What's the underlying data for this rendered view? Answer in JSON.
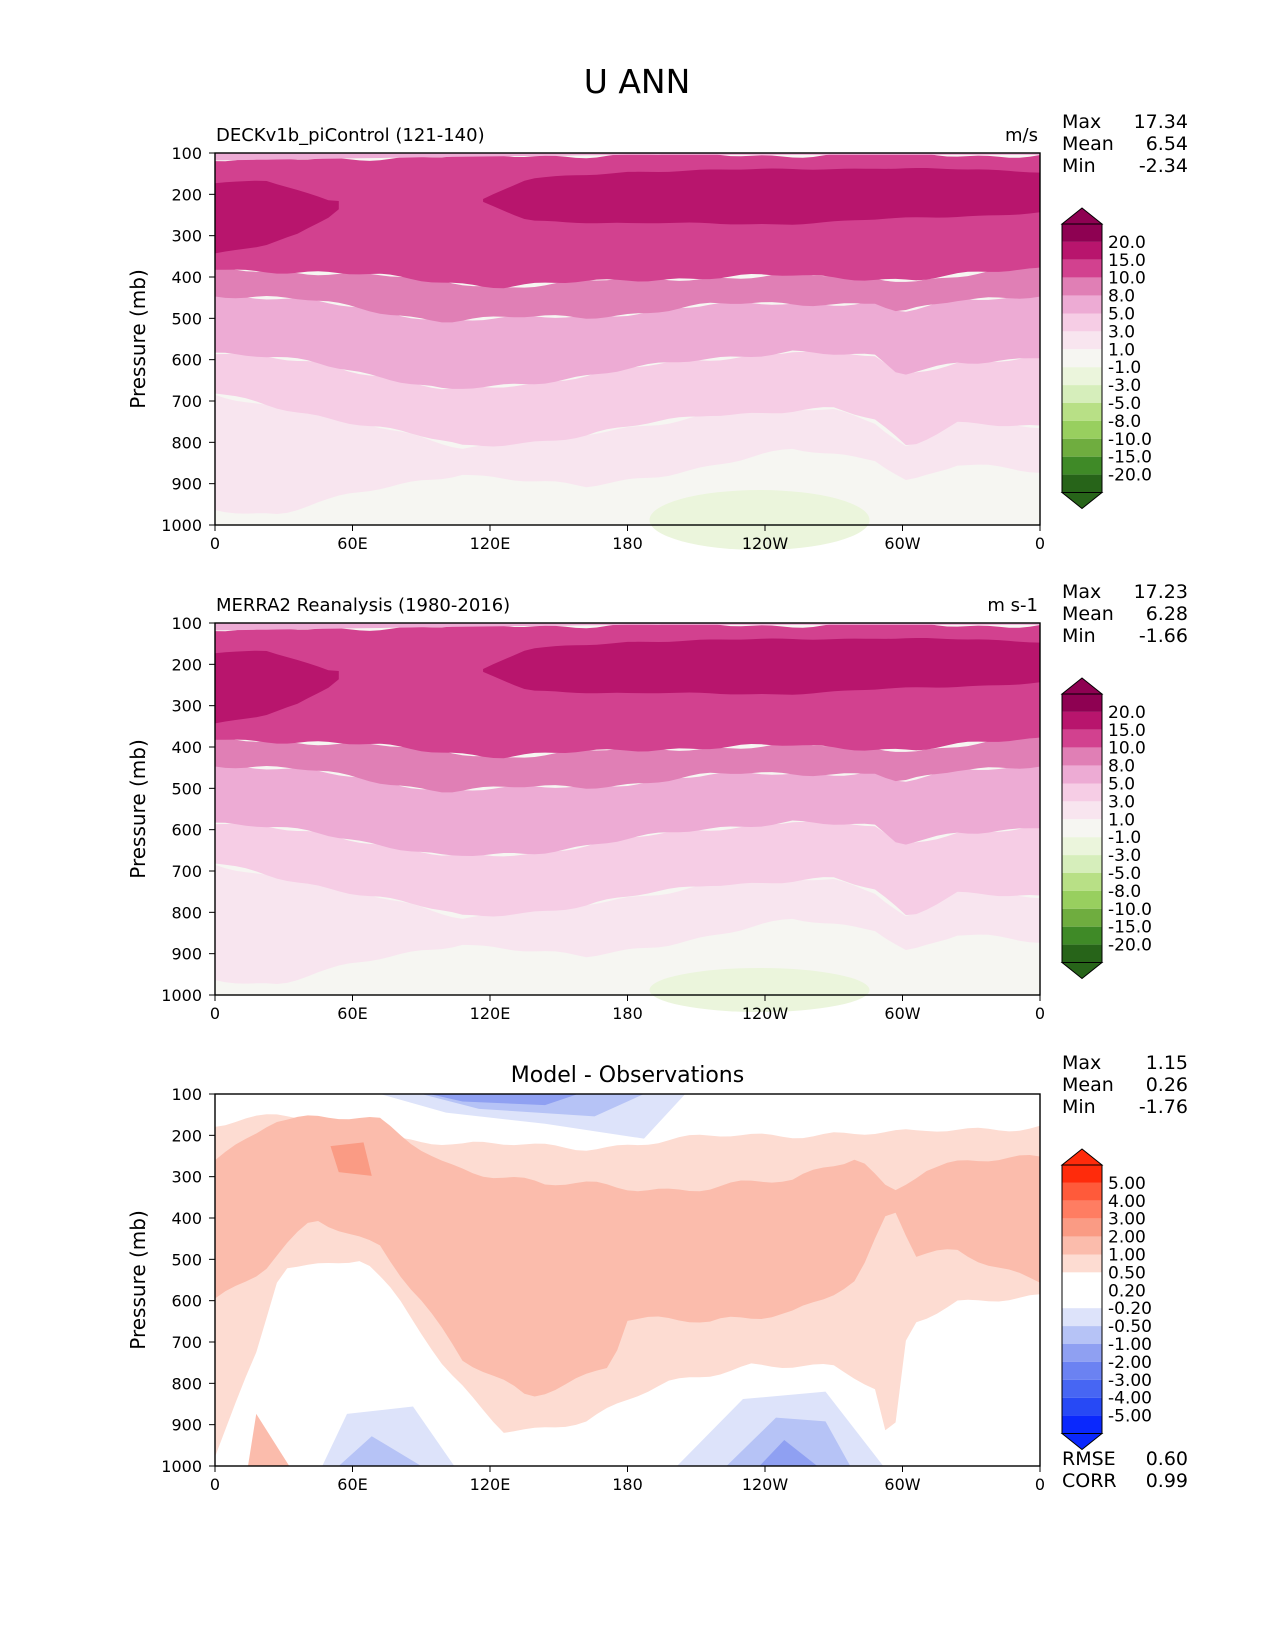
{
  "figure": {
    "title": "U ANN"
  },
  "axes": {
    "ylabel": "Pressure (mb)",
    "yticks": [
      "100",
      "200",
      "300",
      "400",
      "500",
      "600",
      "700",
      "800",
      "900",
      "1000"
    ],
    "xticks": [
      "0",
      "60E",
      "120E",
      "180",
      "120W",
      "60W",
      "0"
    ]
  },
  "chart_data": [
    {
      "type": "heatmap",
      "panel": "test",
      "title": "DECKv1b_piControl (121-140)",
      "units": "m/s",
      "xlabel": "",
      "ylabel": "Pressure (mb)",
      "ylim": [
        1000,
        100
      ],
      "stats": {
        "max": "17.34",
        "mean": "6.54",
        "min": "-2.34"
      },
      "colorbar": {
        "labels": [
          "20.0",
          "15.0",
          "10.0",
          "8.0",
          "5.0",
          "3.0",
          "1.0",
          "-1.0",
          "-3.0",
          "-5.0",
          "-8.0",
          "-10.0",
          "-15.0",
          "-20.0"
        ],
        "colors": [
          "#8e0152",
          "#b8156d",
          "#d2418f",
          "#e07fb5",
          "#edabd4",
          "#f6cde5",
          "#f8e5ef",
          "#f6f6f2",
          "#ebf5dc",
          "#d6eebb",
          "#b8e086",
          "#98cf5f",
          "#6fad3f",
          "#3f8a27",
          "#276419"
        ],
        "over": "#8e0152",
        "under": "#276419"
      }
    },
    {
      "type": "heatmap",
      "panel": "reference",
      "title": "MERRA2 Reanalysis (1980-2016)",
      "units": "m s-1",
      "xlabel": "",
      "ylabel": "Pressure (mb)",
      "ylim": [
        1000,
        100
      ],
      "stats": {
        "max": "17.23",
        "mean": "6.28",
        "min": "-1.66"
      },
      "colorbar": {
        "labels": [
          "20.0",
          "15.0",
          "10.0",
          "8.0",
          "5.0",
          "3.0",
          "1.0",
          "-1.0",
          "-3.0",
          "-5.0",
          "-8.0",
          "-10.0",
          "-15.0",
          "-20.0"
        ],
        "colors": [
          "#8e0152",
          "#b8156d",
          "#d2418f",
          "#e07fb5",
          "#edabd4",
          "#f6cde5",
          "#f8e5ef",
          "#f6f6f2",
          "#ebf5dc",
          "#d6eebb",
          "#b8e086",
          "#98cf5f",
          "#6fad3f",
          "#3f8a27",
          "#276419"
        ],
        "over": "#8e0152",
        "under": "#276419"
      }
    },
    {
      "type": "heatmap",
      "panel": "difference",
      "title": "Model - Observations",
      "xlabel": "",
      "ylabel": "Pressure (mb)",
      "ylim": [
        1000,
        100
      ],
      "stats": {
        "max": "1.15",
        "mean": "0.26",
        "min": "-1.76"
      },
      "metrics": {
        "rmse_label": "RMSE",
        "rmse": "0.60",
        "corr_label": "CORR",
        "corr": "0.99"
      },
      "colorbar": {
        "labels": [
          "5.00",
          "4.00",
          "3.00",
          "2.00",
          "1.00",
          "0.50",
          "0.20",
          "-0.20",
          "-0.50",
          "-1.00",
          "-2.00",
          "-3.00",
          "-4.00",
          "-5.00"
        ],
        "colors": [
          "#ff2b0b",
          "#ff5a3a",
          "#ff7d62",
          "#fa9b84",
          "#fbbcac",
          "#fddcd2",
          "#ffffff",
          "#ffffff",
          "#dde3fa",
          "#b6c3f6",
          "#8fa0f2",
          "#6b82f2",
          "#4766f3",
          "#2749f5",
          "#0a28fd"
        ],
        "over": "#ff2b0b",
        "under": "#0a28fd"
      }
    }
  ]
}
